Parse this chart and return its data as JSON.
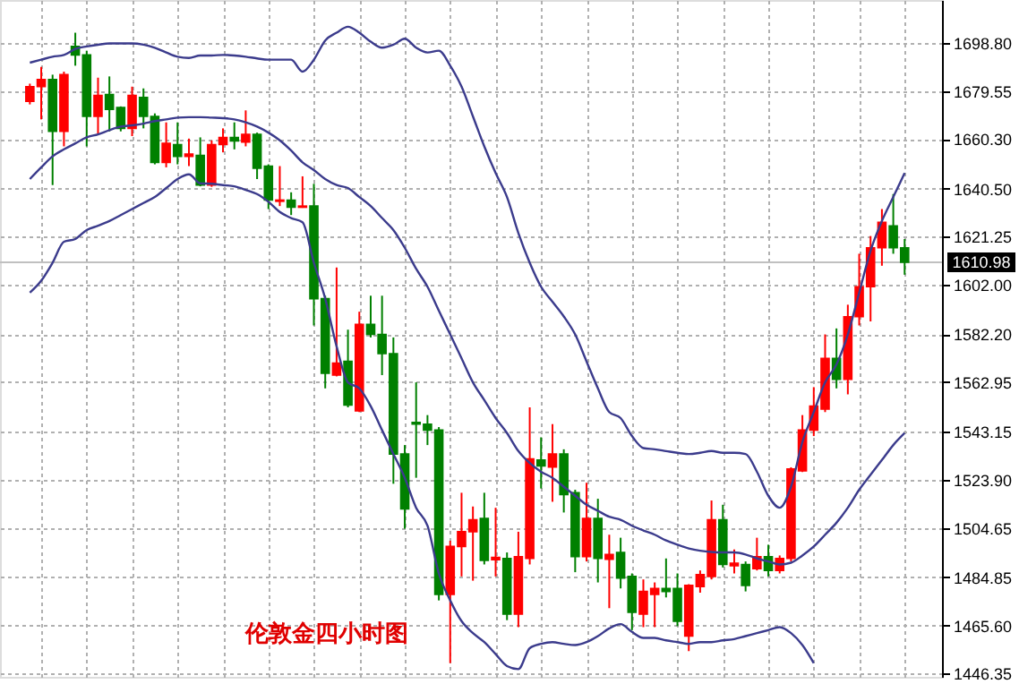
{
  "chart_data": {
    "type": "candlestick",
    "categories": [
      null,
      null,
      null,
      null,
      null,
      null,
      null,
      null,
      null,
      null,
      null,
      null,
      null,
      null,
      null,
      null,
      null,
      null,
      null,
      null,
      null,
      null,
      null,
      null,
      null,
      null,
      null,
      null,
      null,
      null,
      null,
      null,
      null,
      null,
      null,
      null,
      null,
      null,
      null,
      null,
      null,
      null,
      null,
      null,
      null,
      null,
      null,
      null,
      null,
      null,
      null,
      null,
      null,
      null,
      null,
      null,
      null,
      null,
      null,
      null,
      null,
      null,
      null,
      null,
      null,
      null,
      null,
      null,
      null,
      null,
      null,
      null,
      null,
      null,
      null,
      null,
      null,
      null
    ],
    "ohlc": [
      [
        1675.4,
        1682.5,
        1674.2,
        1681.3
      ],
      [
        1681.3,
        1689.2,
        1668.2,
        1684.2
      ],
      [
        1684.2,
        1686.1,
        1641.9,
        1663.4
      ],
      [
        1663.4,
        1687.3,
        1657.4,
        1686.1
      ],
      [
        1697.4,
        1702.9,
        1689.7,
        1694.0
      ],
      [
        1694.0,
        1695.7,
        1657.4,
        1669.4
      ],
      [
        1669.4,
        1684.9,
        1662.2,
        1677.8
      ],
      [
        1678.2,
        1685.4,
        1663.4,
        1672.2
      ],
      [
        1673.0,
        1673.4,
        1663.4,
        1664.6
      ],
      [
        1664.6,
        1681.3,
        1661.5,
        1677.8
      ],
      [
        1677.0,
        1680.6,
        1664.6,
        1669.4
      ],
      [
        1669.4,
        1670.6,
        1650.2,
        1651.0
      ],
      [
        1651.0,
        1667.0,
        1649.0,
        1658.6
      ],
      [
        1658.1,
        1667.0,
        1650.2,
        1653.4
      ],
      [
        1653.4,
        1660.5,
        1649.5,
        1654.3
      ],
      [
        1653.8,
        1661.0,
        1641.4,
        1641.9
      ],
      [
        1641.9,
        1659.8,
        1641.2,
        1658.1
      ],
      [
        1658.1,
        1664.6,
        1655.0,
        1661.0
      ],
      [
        1661.0,
        1667.0,
        1656.2,
        1659.6
      ],
      [
        1659.1,
        1671.8,
        1657.4,
        1662.2
      ],
      [
        1662.2,
        1662.9,
        1644.3,
        1648.6
      ],
      [
        1649.5,
        1650.2,
        1632.3,
        1635.9
      ],
      [
        1635.4,
        1649.5,
        1633.5,
        1635.9
      ],
      [
        1635.9,
        1639.0,
        1629.9,
        1633.0
      ],
      [
        1633.0,
        1645.4,
        1632.8,
        1633.5
      ],
      [
        1633.5,
        1642.4,
        1585.7,
        1596.4
      ],
      [
        1596.4,
        1597.6,
        1560.5,
        1566.5
      ],
      [
        1565.8,
        1608.9,
        1565.3,
        1570.6
      ],
      [
        1571.3,
        1584.0,
        1552.9,
        1553.8
      ],
      [
        1551.5,
        1591.2,
        1551.0,
        1586.1
      ],
      [
        1586.1,
        1597.6,
        1580.9,
        1582.1
      ],
      [
        1582.1,
        1597.6,
        1565.8,
        1574.4
      ],
      [
        1574.4,
        1580.9,
        1522.3,
        1534.2
      ],
      [
        1534.2,
        1537.8,
        1504.3,
        1512.2
      ],
      [
        1546.9,
        1562.9,
        1524.7,
        1546.2
      ],
      [
        1546.2,
        1549.8,
        1537.8,
        1543.8
      ],
      [
        1543.8,
        1545.0,
        1475.6,
        1478.0
      ],
      [
        1478.0,
        1499.5,
        1450.5,
        1497.2
      ],
      [
        1497.2,
        1518.7,
        1485.2,
        1503.1
      ],
      [
        1503.1,
        1513.2,
        1483.5,
        1507.9
      ],
      [
        1508.4,
        1518.7,
        1490.0,
        1491.6
      ],
      [
        1491.9,
        1512.7,
        1485.2,
        1492.8
      ],
      [
        1492.4,
        1494.8,
        1467.7,
        1470.1
      ],
      [
        1470.1,
        1503.1,
        1464.9,
        1493.1
      ],
      [
        1492.4,
        1552.9,
        1490.0,
        1532.3
      ],
      [
        1531.8,
        1540.9,
        1520.4,
        1529.4
      ],
      [
        1529.0,
        1546.2,
        1515.1,
        1534.2
      ],
      [
        1534.2,
        1536.1,
        1510.8,
        1518.0
      ],
      [
        1518.7,
        1519.9,
        1486.9,
        1493.1
      ],
      [
        1493.1,
        1522.7,
        1491.2,
        1508.4
      ],
      [
        1508.4,
        1516.3,
        1482.8,
        1492.4
      ],
      [
        1492.1,
        1501.9,
        1472.5,
        1494.0
      ],
      [
        1494.8,
        1500.7,
        1480.4,
        1484.5
      ],
      [
        1485.2,
        1486.4,
        1463.7,
        1470.8
      ],
      [
        1470.1,
        1484.0,
        1464.9,
        1479.2
      ],
      [
        1478.0,
        1482.8,
        1464.9,
        1480.4
      ],
      [
        1480.4,
        1492.4,
        1476.8,
        1479.2
      ],
      [
        1480.4,
        1486.4,
        1465.3,
        1467.2
      ],
      [
        1461.3,
        1482.1,
        1455.3,
        1481.6
      ],
      [
        1481.1,
        1487.6,
        1478.7,
        1485.9
      ],
      [
        1485.2,
        1515.6,
        1484.0,
        1507.9
      ],
      [
        1507.9,
        1513.9,
        1488.8,
        1490.0
      ],
      [
        1489.5,
        1496.0,
        1486.4,
        1490.5
      ],
      [
        1490.0,
        1491.2,
        1479.2,
        1481.6
      ],
      [
        1488.3,
        1500.7,
        1487.6,
        1493.1
      ],
      [
        1493.1,
        1497.9,
        1485.2,
        1487.6
      ],
      [
        1487.6,
        1493.6,
        1486.4,
        1492.4
      ],
      [
        1492.4,
        1528.9,
        1491.2,
        1528.2
      ],
      [
        1527.5,
        1549.8,
        1527.0,
        1543.8
      ],
      [
        1543.8,
        1561.0,
        1541.4,
        1553.4
      ],
      [
        1552.2,
        1582.1,
        1551.0,
        1572.5
      ],
      [
        1572.5,
        1584.5,
        1560.5,
        1564.1
      ],
      [
        1564.1,
        1594.0,
        1558.1,
        1589.2
      ],
      [
        1589.2,
        1614.4,
        1585.7,
        1601.2
      ],
      [
        1601.2,
        1621.5,
        1587.3,
        1616.8
      ],
      [
        1616.8,
        1632.3,
        1609.6,
        1627.0
      ],
      [
        1625.6,
        1638.3,
        1614.4,
        1616.8
      ],
      [
        1616.8,
        1620.3,
        1606.0,
        1610.98
      ]
    ],
    "colors": [
      "#ff0000",
      "#ff0000",
      "#008000",
      "#ff0000",
      "#008000",
      "#008000",
      "#ff0000",
      "#008000",
      "#008000",
      "#ff0000",
      "#008000",
      "#008000",
      "#ff0000",
      "#008000",
      "#ff0000",
      "#008000",
      "#ff0000",
      "#ff0000",
      "#008000",
      "#ff0000",
      "#008000",
      "#008000",
      "#ff0000",
      "#008000",
      "#ff0000",
      "#008000",
      "#008000",
      "#ff0000",
      "#008000",
      "#ff0000",
      "#008000",
      "#008000",
      "#008000",
      "#008000",
      "#008000",
      "#008000",
      "#008000",
      "#ff0000",
      "#ff0000",
      "#ff0000",
      "#008000",
      "#ff0000",
      "#008000",
      "#ff0000",
      "#ff0000",
      "#008000",
      "#ff0000",
      "#008000",
      "#008000",
      "#ff0000",
      "#008000",
      "#ff0000",
      "#008000",
      "#008000",
      "#ff0000",
      "#ff0000",
      "#008000",
      "#008000",
      "#ff0000",
      "#ff0000",
      "#ff0000",
      "#008000",
      "#ff0000",
      "#008000",
      "#ff0000",
      "#008000",
      "#ff0000",
      "#ff0000",
      "#ff0000",
      "#ff0000",
      "#ff0000",
      "#008000",
      "#ff0000",
      "#ff0000",
      "#ff0000",
      "#ff0000",
      "#008000",
      "#008000"
    ],
    "series": [
      {
        "type": "line",
        "color": "#3b3b8c",
        "values": [
          1690.9,
          1692.1,
          1693.3,
          1694.0,
          1696.4,
          1697.4,
          1698.1,
          1698.6,
          1698.6,
          1698.6,
          1698.1,
          1696.9,
          1695.0,
          1693.3,
          1692.8,
          1693.8,
          1693.8,
          1694.0,
          1693.8,
          1693.3,
          1692.6,
          1692.1,
          1692.1,
          1692.1,
          1687.3,
          1692.1,
          1699.8,
          1702.9,
          1705.3,
          1702.9,
          1699.3,
          1696.9,
          1698.1,
          1700.5,
          1696.9,
          1695.0,
          1695.7,
          1689.7,
          1681.3,
          1669.4,
          1657.4,
          1646.7,
          1637.1,
          1622.7,
          1610.8,
          1601.2,
          1595.2,
          1589.3,
          1582.1,
          1571.3,
          1560.5,
          1551.0,
          1548.6,
          1541.4,
          1536.6,
          1536.1,
          1535.4,
          1534.7,
          1534.2,
          1534.7,
          1535.4,
          1534.7,
          1534.7,
          1534.2,
          1527.1,
          1517.5,
          1512.7,
          1521.1,
          1539.0,
          1551.0,
          1562.9,
          1570.1,
          1582.1,
          1598.8,
          1615.6,
          1627.5,
          1637.1,
          1646.7
        ]
      },
      {
        "type": "line",
        "color": "#3b3b8c",
        "values": [
          1644.3,
          1649.0,
          1653.4,
          1656.2,
          1658.6,
          1661.0,
          1662.2,
          1663.9,
          1665.3,
          1665.8,
          1666.5,
          1667.5,
          1668.2,
          1668.9,
          1669.1,
          1669.1,
          1668.9,
          1668.7,
          1668.2,
          1667.0,
          1665.3,
          1662.9,
          1659.8,
          1655.7,
          1651.0,
          1647.9,
          1644.3,
          1641.9,
          1640.7,
          1637.1,
          1633.5,
          1628.7,
          1623.9,
          1616.8,
          1608.4,
          1601.2,
          1591.6,
          1582.1,
          1572.5,
          1562.9,
          1555.8,
          1548.6,
          1542.6,
          1535.4,
          1530.6,
          1527.1,
          1524.7,
          1521.1,
          1517.5,
          1513.9,
          1511.5,
          1509.1,
          1507.9,
          1505.5,
          1503.6,
          1501.9,
          1499.6,
          1497.9,
          1496.4,
          1495.5,
          1495.0,
          1494.8,
          1494.8,
          1494.0,
          1492.4,
          1491.2,
          1490.0,
          1490.7,
          1493.6,
          1497.2,
          1501.9,
          1506.7,
          1512.7,
          1519.9,
          1525.9,
          1531.8,
          1537.8,
          1542.6
        ]
      },
      {
        "type": "line",
        "color": "#3b3b8c",
        "values": [
          1598.8,
          1603.6,
          1610.8,
          1619.2,
          1620.3,
          1623.9,
          1625.6,
          1627.5,
          1629.9,
          1632.3,
          1634.7,
          1637.1,
          1640.7,
          1644.3,
          1646.2,
          1642.6,
          1642.4,
          1641.9,
          1641.4,
          1640.0,
          1638.3,
          1635.2,
          1631.1,
          1628.7,
          1627.0,
          1610.8,
          1596.4,
          1577.3,
          1562.9,
          1560.5,
          1553.4,
          1543.8,
          1534.2,
          1524.7,
          1512.7,
          1505.5,
          1486.4,
          1475.6,
          1467.3,
          1462.5,
          1458.9,
          1454.1,
          1449.3,
          1448.1,
          1456.5,
          1458.2,
          1458.9,
          1458.2,
          1457.7,
          1458.9,
          1461.3,
          1464.4,
          1466.1,
          1463.0,
          1460.6,
          1460.6,
          1459.6,
          1458.9,
          1458.2,
          1458.9,
          1458.9,
          1459.6,
          1460.1,
          1461.3,
          1462.5,
          1463.7,
          1464.9,
          1462.5,
          1457.7,
          1450.5,
          null,
          null,
          null,
          null,
          null,
          null,
          null,
          null
        ]
      }
    ],
    "ylim": [
      1445,
      1716
    ],
    "yticks": [
      {
        "value": 1446.35,
        "label": "1446.35"
      },
      {
        "value": 1465.6,
        "label": "1465.60"
      },
      {
        "value": 1484.85,
        "label": "1484.85"
      },
      {
        "value": 1504.65,
        "label": "1504.65"
      },
      {
        "value": 1523.9,
        "label": "1523.90"
      },
      {
        "value": 1543.15,
        "label": "1543.15"
      },
      {
        "value": 1562.95,
        "label": "1562.95"
      },
      {
        "value": 1582.2,
        "label": "1582.20"
      },
      {
        "value": 1602.0,
        "label": "1602.00"
      },
      {
        "value": 1621.25,
        "label": "1621.25"
      },
      {
        "value": 1640.5,
        "label": "1640.50"
      },
      {
        "value": 1660.3,
        "label": "1660.30"
      },
      {
        "value": 1679.55,
        "label": "1679.55"
      },
      {
        "value": 1698.8,
        "label": "1698.80"
      }
    ],
    "ref_lines": [
      {
        "axis": "y",
        "value": 1610.98,
        "label": "1610.98",
        "color": "#c0c0c0"
      }
    ],
    "annotations": [
      "伦敦金四小时图"
    ],
    "grid": true,
    "tick_labels": "y"
  }
}
